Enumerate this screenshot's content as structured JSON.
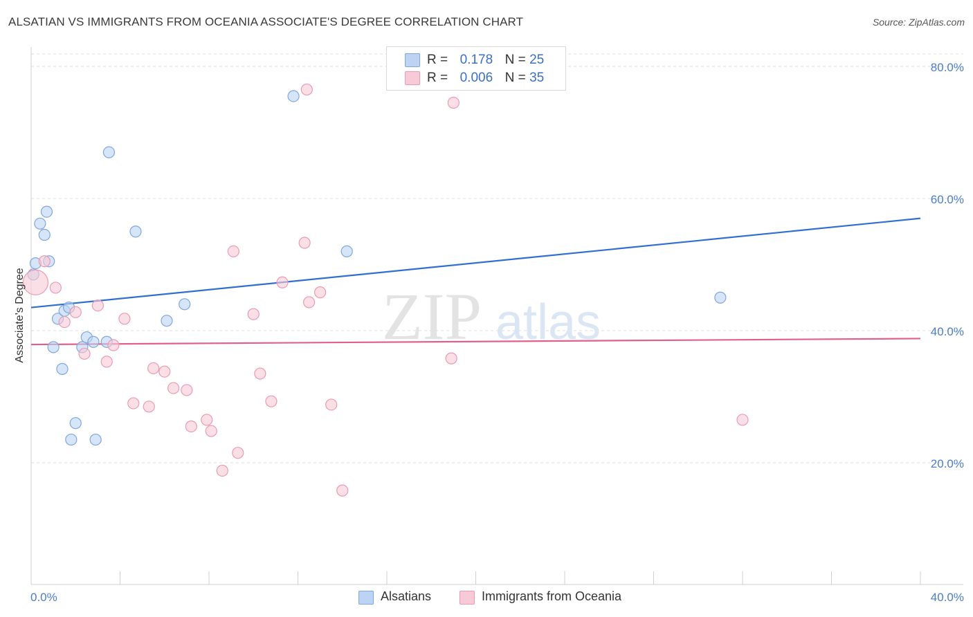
{
  "title": "ALSATIAN VS IMMIGRANTS FROM OCEANIA ASSOCIATE'S DEGREE CORRELATION CHART",
  "source": "Source: ZipAtlas.com",
  "watermark": {
    "zip": "ZIP",
    "atlas": "atlas"
  },
  "colors": {
    "blue_fill": "#bcd3f4",
    "blue_stroke": "#7fa6de",
    "blue_line": "#2f6fcf",
    "pink_fill": "#f8c9d6",
    "pink_stroke": "#ea9ab2",
    "pink_line": "#e0608a",
    "tick_text": "#4a7cc9",
    "grid": "#dddddd"
  },
  "legend": {
    "rows": [
      {
        "r_label": "R =",
        "r_value": "0.178",
        "n_label": "N =",
        "n_value": "25"
      },
      {
        "r_label": "R =",
        "r_value": "0.006",
        "n_label": "N =",
        "n_value": "35"
      }
    ]
  },
  "bottom_legend": {
    "series_a": "Alsatians",
    "series_b": "Immigrants from Oceania"
  },
  "chart_data": {
    "type": "scatter",
    "title": "ALSATIAN VS IMMIGRANTS FROM OCEANIA ASSOCIATE'S DEGREE CORRELATION CHART",
    "xlabel": "",
    "ylabel": "Associate's Degree",
    "xlim": [
      0,
      40
    ],
    "ylim": [
      0,
      82
    ],
    "x_tick_labels": [
      "0.0%",
      "40.0%"
    ],
    "y_ticks": [
      {
        "value": 20,
        "label": "20.0%"
      },
      {
        "value": 40,
        "label": "40.0%"
      },
      {
        "value": 60,
        "label": "60.0%"
      },
      {
        "value": 80,
        "label": "80.0%"
      }
    ],
    "grid": true,
    "series": [
      {
        "name": "Alsatians",
        "color": "blue",
        "points": [
          [
            0.1,
            48.5
          ],
          [
            0.2,
            50.2
          ],
          [
            0.4,
            56.2
          ],
          [
            0.6,
            54.5
          ],
          [
            0.7,
            58.0
          ],
          [
            0.8,
            50.5
          ],
          [
            1.0,
            37.5
          ],
          [
            1.2,
            41.8
          ],
          [
            1.4,
            34.2
          ],
          [
            1.5,
            43.0
          ],
          [
            1.7,
            43.5
          ],
          [
            1.8,
            23.5
          ],
          [
            2.0,
            26.0
          ],
          [
            2.3,
            37.5
          ],
          [
            2.5,
            39.0
          ],
          [
            2.8,
            38.3
          ],
          [
            2.9,
            23.5
          ],
          [
            3.4,
            38.3
          ],
          [
            3.5,
            67.0
          ],
          [
            4.7,
            55.0
          ],
          [
            6.1,
            41.5
          ],
          [
            6.9,
            44.0
          ],
          [
            11.8,
            75.5
          ],
          [
            14.2,
            52.0
          ],
          [
            31.0,
            45.0
          ]
        ],
        "trend": {
          "x": [
            0,
            40
          ],
          "y": [
            43.5,
            57.0
          ]
        }
      },
      {
        "name": "Immigrants from Oceania",
        "color": "pink",
        "points": [
          [
            0.2,
            47.3
          ],
          [
            0.6,
            50.5
          ],
          [
            1.1,
            46.5
          ],
          [
            1.5,
            41.3
          ],
          [
            2.0,
            42.8
          ],
          [
            2.4,
            36.5
          ],
          [
            3.0,
            43.8
          ],
          [
            3.4,
            35.3
          ],
          [
            3.7,
            37.8
          ],
          [
            4.2,
            41.8
          ],
          [
            4.6,
            29.0
          ],
          [
            5.3,
            28.5
          ],
          [
            5.5,
            34.3
          ],
          [
            6.0,
            33.8
          ],
          [
            6.4,
            31.3
          ],
          [
            7.0,
            31.0
          ],
          [
            7.2,
            25.5
          ],
          [
            7.9,
            26.5
          ],
          [
            8.1,
            24.8
          ],
          [
            8.6,
            18.8
          ],
          [
            9.1,
            52.0
          ],
          [
            9.3,
            21.5
          ],
          [
            10.0,
            42.5
          ],
          [
            10.3,
            33.5
          ],
          [
            10.8,
            29.3
          ],
          [
            11.3,
            47.3
          ],
          [
            12.3,
            53.3
          ],
          [
            12.5,
            44.3
          ],
          [
            13.0,
            45.8
          ],
          [
            13.5,
            28.8
          ],
          [
            14.0,
            15.8
          ],
          [
            12.4,
            76.5
          ],
          [
            18.9,
            35.8
          ],
          [
            32.0,
            26.5
          ],
          [
            19.0,
            74.5
          ]
        ],
        "trend": {
          "x": [
            0,
            40
          ],
          "y": [
            37.9,
            38.8
          ]
        }
      }
    ]
  }
}
